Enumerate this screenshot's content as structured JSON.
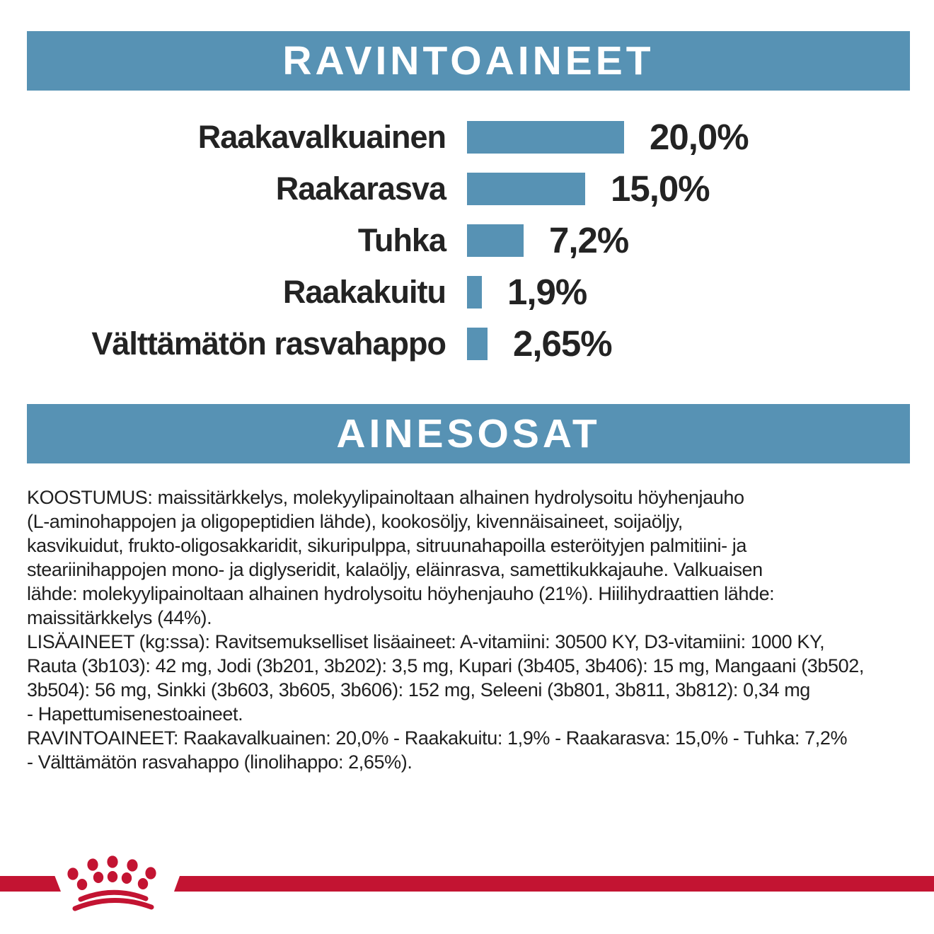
{
  "sections": {
    "nutrients_header": "RAVINTOAINEET",
    "ingredients_header": "AINESOSAT"
  },
  "chart_data": {
    "type": "bar",
    "orientation": "horizontal",
    "title": "RAVINTOAINEET",
    "unit": "%",
    "categories": [
      "Raakavalkuainen",
      "Raakarasva",
      "Tuhka",
      "Raakakuitu",
      "Välttämätön rasvahappo"
    ],
    "values": [
      20.0,
      15.0,
      7.2,
      1.9,
      2.65
    ],
    "value_labels": [
      "20,0%",
      "15,0%",
      "7,2%",
      "1,9%",
      "2,65%"
    ],
    "xlim": [
      0,
      22
    ],
    "grid": false,
    "legend": false,
    "bar_color": "#5792b4",
    "label_position": "right-of-bar"
  },
  "body": {
    "composition_lines": [
      "KOOSTUMUS: maissitärkkelys, molekyylipainoltaan alhainen hydrolysoitu höyhenjauho",
      "(L-aminohappojen ja oligopeptidien lähde), kookosöljy, kivennäisaineet, soijaöljy,",
      "kasvikuidut, frukto-oligosakkaridit, sikuripulppa, sitruunahapoilla esteröityjen palmitiini- ja",
      "steariinihappojen mono- ja diglyseridit, kalaöljy, eläinrasva, samettikukkajauhe. Valkuaisen",
      "lähde: molekyylipainoltaan alhainen hydrolysoitu höyhenjauho (21%). Hiilihydraattien lähde:",
      "maissitärkkelys (44%)."
    ],
    "additives_lines": [
      "LISÄAINEET (kg:ssa): Ravitsemukselliset lisäaineet: A-vitamiini: 30500 KY, D3-vitamiini: 1000 KY,",
      "Rauta (3b103): 42 mg, Jodi (3b201, 3b202): 3,5 mg, Kupari (3b405, 3b406): 15 mg, Mangaani (3b502,",
      "3b504): 56 mg, Sinkki (3b603, 3b605, 3b606): 152 mg, Seleeni (3b801, 3b811, 3b812): 0,34 mg",
      "- Hapettumisenestoaineet."
    ],
    "nutrients_lines": [
      "RAVINTOAINEET: Raakavalkuainen: 20,0% - Raakakuitu: 1,9% - Raakarasva: 15,0% - Tuhka: 7,2%",
      "- Välttämätön rasvahappo (linolihappo: 2,65%)."
    ]
  },
  "colors": {
    "accent_blue": "#5792b4",
    "brand_red": "#c31432",
    "text_dark": "#232323"
  },
  "brand": {
    "logo_icon": "royal-canin-crown-icon"
  }
}
